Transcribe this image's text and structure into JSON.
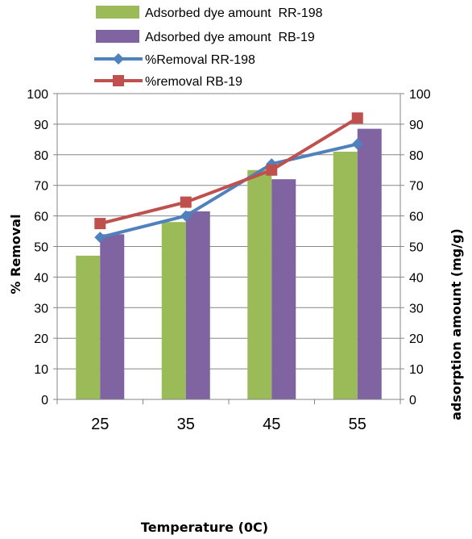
{
  "chart_data": {
    "type": "bar",
    "categories": [
      "25",
      "35",
      "45",
      "55"
    ],
    "xlabel": "Temperature (0C)",
    "ylabel": "% Removal",
    "y2label": "adsorption amount (mg/g)",
    "ylim": [
      0,
      100
    ],
    "y2lim": [
      0,
      100
    ],
    "yticks": [
      "0",
      "10",
      "20",
      "30",
      "40",
      "50",
      "60",
      "70",
      "80",
      "90",
      "100"
    ],
    "grid": "horizontal",
    "legend_position": "top",
    "series": [
      {
        "name": "Adsorbed dye amount  RR-198",
        "type": "bar",
        "axis": "right",
        "color": "#9BBB59",
        "values": [
          47,
          58,
          75,
          81
        ]
      },
      {
        "name": "Adsorbed dye amount  RB-19",
        "type": "bar",
        "axis": "right",
        "color": "#8064A2",
        "values": [
          54,
          61.5,
          72,
          88.5
        ]
      },
      {
        "name": "%Removal RR-198",
        "type": "line",
        "axis": "left",
        "marker": "diamond",
        "color": "#4F81BD",
        "values": [
          53,
          60,
          77,
          83.5
        ]
      },
      {
        "name": "%removal RB-19",
        "type": "line",
        "axis": "left",
        "marker": "square",
        "color": "#C0504D",
        "values": [
          57.5,
          64.5,
          75,
          92
        ]
      }
    ]
  }
}
